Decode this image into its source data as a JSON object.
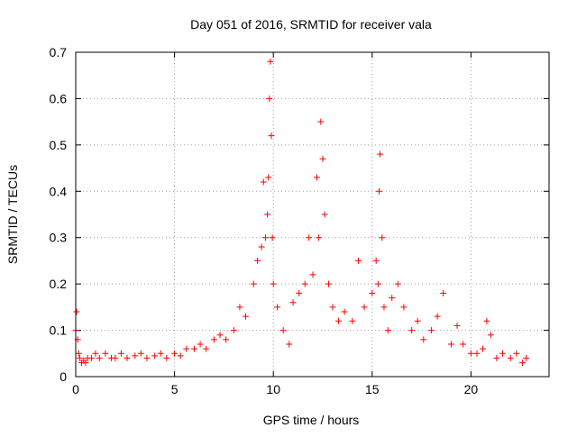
{
  "chart_data": {
    "type": "scatter",
    "title": "Day 051 of 2016, SRMTID for receiver vala",
    "xlabel": "GPS time / hours",
    "ylabel": "SRMTID / TECUs",
    "xlim": [
      0,
      23.95
    ],
    "ylim": [
      0,
      0.7
    ],
    "x_ticks": [
      0,
      5,
      10,
      15,
      20
    ],
    "y_ticks": [
      0,
      0.1,
      0.2,
      0.3,
      0.4,
      0.5,
      0.6,
      0.7
    ],
    "x_tick_labels": [
      "0",
      "5",
      "10",
      "15",
      "20"
    ],
    "y_tick_labels": [
      "0",
      "0.1",
      "0.2",
      "0.3",
      "0.4",
      "0.5",
      "0.6",
      "0.7"
    ],
    "grid": true,
    "marker": "+",
    "color": "#ff0000",
    "series": [
      {
        "name": "SRMTID",
        "x": [
          0.0,
          0.05,
          0.1,
          0.15,
          0.2,
          0.3,
          0.4,
          0.5,
          0.6,
          0.8,
          1.0,
          1.2,
          1.5,
          1.8,
          2.0,
          2.3,
          2.6,
          3.0,
          3.3,
          3.6,
          4.0,
          4.3,
          4.6,
          5.0,
          5.3,
          5.6,
          6.0,
          6.3,
          6.6,
          7.0,
          7.3,
          7.6,
          8.0,
          8.3,
          8.6,
          9.0,
          9.2,
          9.4,
          9.5,
          9.6,
          9.7,
          9.75,
          9.8,
          9.85,
          9.9,
          9.95,
          10.0,
          10.2,
          10.5,
          10.8,
          11.0,
          11.3,
          11.6,
          11.8,
          12.0,
          12.2,
          12.3,
          12.4,
          12.5,
          12.6,
          12.8,
          13.0,
          13.3,
          13.6,
          14.0,
          14.3,
          14.6,
          15.0,
          15.2,
          15.3,
          15.35,
          15.4,
          15.5,
          15.6,
          15.8,
          16.0,
          16.3,
          16.6,
          17.0,
          17.3,
          17.6,
          18.0,
          18.3,
          18.6,
          19.0,
          19.3,
          19.6,
          20.0,
          20.3,
          20.6,
          20.8,
          21.0,
          21.3,
          21.6,
          22.0,
          22.3,
          22.6,
          22.8
        ],
        "y": [
          0.1,
          0.14,
          0.08,
          0.05,
          0.04,
          0.03,
          0.035,
          0.03,
          0.04,
          0.04,
          0.05,
          0.04,
          0.05,
          0.04,
          0.04,
          0.05,
          0.04,
          0.045,
          0.05,
          0.04,
          0.045,
          0.05,
          0.04,
          0.05,
          0.045,
          0.06,
          0.06,
          0.07,
          0.06,
          0.08,
          0.09,
          0.08,
          0.1,
          0.15,
          0.13,
          0.2,
          0.25,
          0.28,
          0.42,
          0.3,
          0.35,
          0.43,
          0.6,
          0.68,
          0.52,
          0.3,
          0.2,
          0.15,
          0.1,
          0.07,
          0.16,
          0.18,
          0.2,
          0.3,
          0.22,
          0.43,
          0.3,
          0.55,
          0.47,
          0.35,
          0.2,
          0.15,
          0.12,
          0.14,
          0.12,
          0.25,
          0.15,
          0.18,
          0.25,
          0.2,
          0.4,
          0.48,
          0.3,
          0.15,
          0.1,
          0.17,
          0.2,
          0.15,
          0.1,
          0.12,
          0.08,
          0.1,
          0.13,
          0.18,
          0.07,
          0.11,
          0.07,
          0.05,
          0.05,
          0.06,
          0.12,
          0.09,
          0.04,
          0.05,
          0.04,
          0.05,
          0.03,
          0.04
        ]
      }
    ]
  }
}
